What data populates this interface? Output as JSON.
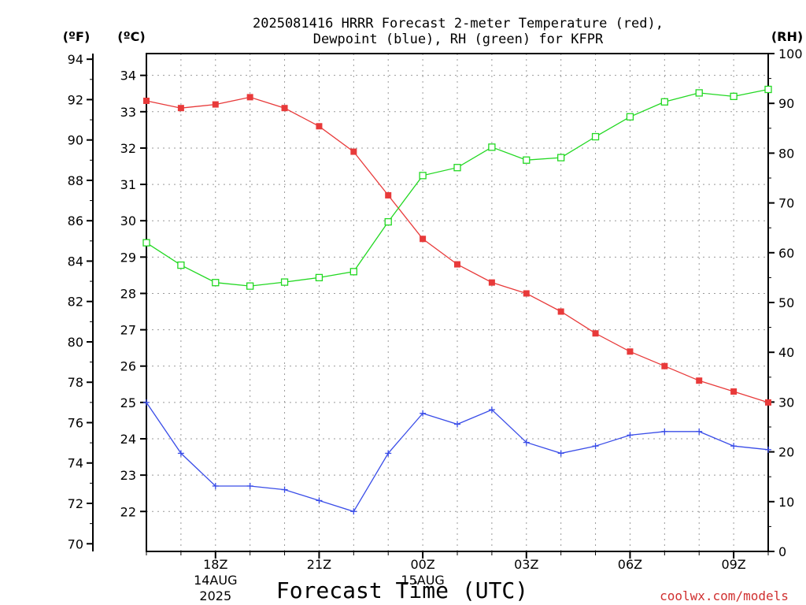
{
  "title_line1": "2025081416 HRRR Forecast 2-meter Temperature (red),",
  "title_line2": "Dewpoint (blue), RH (green) for KFPR",
  "units": {
    "fahrenheit": "(ºF)",
    "celsius": "(ºC)",
    "rh": "(RH)"
  },
  "xlabel": "Forecast Time (UTC)",
  "credit": "coolwx.com/models",
  "colors": {
    "temperature": "#e83a3a",
    "dewpoint": "#3a4de8",
    "rh": "#22d822"
  },
  "chart_data": {
    "type": "line",
    "x": [
      16,
      17,
      18,
      19,
      20,
      21,
      22,
      23,
      24,
      25,
      26,
      27,
      28,
      29,
      30,
      31,
      32,
      33,
      34
    ],
    "x_units": "hours UTC from 00Z 14AUG2025",
    "xlim": [
      16,
      34
    ],
    "x_ticks": [
      {
        "x": 18,
        "label": "18Z",
        "sub1": "14AUG",
        "sub2": "2025"
      },
      {
        "x": 21,
        "label": "21Z",
        "sub1": "",
        "sub2": ""
      },
      {
        "x": 24,
        "label": "00Z",
        "sub1": "15AUG",
        "sub2": ""
      },
      {
        "x": 27,
        "label": "03Z",
        "sub1": "",
        "sub2": ""
      },
      {
        "x": 30,
        "label": "06Z",
        "sub1": "",
        "sub2": ""
      },
      {
        "x": 33,
        "label": "09Z",
        "sub1": "",
        "sub2": ""
      }
    ],
    "y_celsius_lim": [
      20.9,
      34.6
    ],
    "y_celsius_ticks": [
      22,
      23,
      24,
      25,
      26,
      27,
      28,
      29,
      30,
      31,
      32,
      33,
      34
    ],
    "y_fahrenheit_ticks": [
      70,
      72,
      74,
      76,
      78,
      80,
      82,
      84,
      86,
      88,
      90,
      92,
      94
    ],
    "y_rh_lim": [
      0,
      100
    ],
    "y_rh_ticks": [
      0,
      10,
      20,
      30,
      40,
      50,
      60,
      70,
      80,
      90,
      100
    ],
    "series": [
      {
        "name": "Temperature",
        "axis": "celsius",
        "marker": "filled-square",
        "values": [
          33.3,
          33.1,
          33.2,
          33.4,
          33.1,
          32.6,
          31.9,
          30.7,
          29.5,
          28.8,
          28.3,
          28.0,
          27.5,
          26.9,
          26.4,
          26.0,
          25.6,
          25.3,
          25.0
        ]
      },
      {
        "name": "Dewpoint",
        "axis": "celsius",
        "marker": "plus",
        "values": [
          25.0,
          23.6,
          22.7,
          22.7,
          22.6,
          22.3,
          22.0,
          23.6,
          24.7,
          24.4,
          24.8,
          23.9,
          23.6,
          23.8,
          24.1,
          24.2,
          24.2,
          23.8,
          23.7
        ]
      },
      {
        "name": "RH",
        "axis": "rh",
        "marker": "open-square",
        "values": [
          62,
          57.5,
          54,
          53.3,
          54.1,
          55,
          56.2,
          66.2,
          75.5,
          77.1,
          81.2,
          78.6,
          79.1,
          83.3,
          87.3,
          90.3,
          92.1,
          91.4,
          92.8
        ]
      }
    ],
    "grid": true
  }
}
